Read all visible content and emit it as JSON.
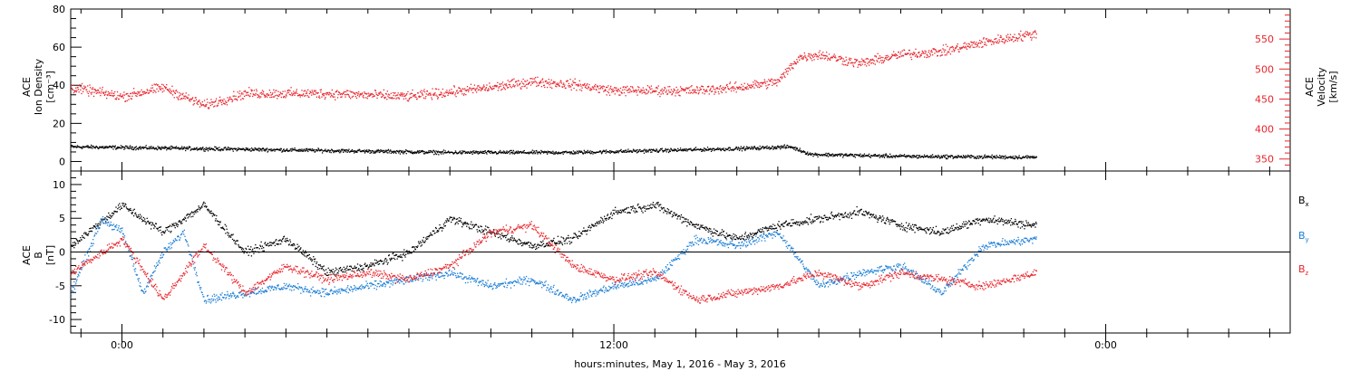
{
  "colors": {
    "black": "#000000",
    "red": "#e8242b",
    "blue": "#1c7ed6"
  },
  "xlabel": "hours:minutes, May  1, 2016 - May  3, 2016",
  "x_ticks": [
    "0:00",
    "12:00",
    "0:00"
  ],
  "x_range_hours": [
    -1.25,
    28.5
  ],
  "data_end_hour": 22.3,
  "chart_data": [
    {
      "type": "scatter",
      "panel": "top",
      "ylabel_lines": [
        "ACE",
        "Ion Density",
        "[cm⁻³]"
      ],
      "ylabel_right_lines": [
        "ACE",
        "Velocity",
        "[km/s]"
      ],
      "ylim_left": [
        -5,
        80
      ],
      "yticks_left": [
        "0",
        "20",
        "40",
        "60",
        "80"
      ],
      "ylim_right": [
        330,
        600
      ],
      "yticks_right": [
        "350",
        "400",
        "450",
        "500",
        "550"
      ],
      "series": [
        {
          "axis": "left",
          "color": "black",
          "points": [
            [
              -1.25,
              8
            ],
            [
              2,
              7
            ],
            [
              5,
              6
            ],
            [
              8,
              5
            ],
            [
              11,
              5
            ],
            [
              13,
              6
            ],
            [
              15,
              7
            ],
            [
              16.3,
              8
            ],
            [
              16.8,
              4
            ],
            [
              19,
              3
            ],
            [
              22.3,
              2.5
            ]
          ]
        },
        {
          "axis": "right",
          "color": "red",
          "points": [
            [
              -1.25,
              470
            ],
            [
              0,
              455
            ],
            [
              1,
              470
            ],
            [
              2,
              440
            ],
            [
              3,
              460
            ],
            [
              5,
              460
            ],
            [
              7,
              455
            ],
            [
              9,
              470
            ],
            [
              10,
              480
            ],
            [
              11,
              475
            ],
            [
              12,
              465
            ],
            [
              14,
              465
            ],
            [
              15,
              470
            ],
            [
              16,
              480
            ],
            [
              16.5,
              520
            ],
            [
              17,
              525
            ],
            [
              18,
              510
            ],
            [
              19,
              525
            ],
            [
              20,
              530
            ],
            [
              21,
              545
            ],
            [
              22.3,
              560
            ]
          ]
        }
      ]
    },
    {
      "type": "scatter",
      "panel": "bottom",
      "ylabel_lines": [
        "ACE",
        "B",
        "[nT]"
      ],
      "ylim": [
        -12,
        12
      ],
      "yticks": [
        "10",
        "5",
        "0",
        "-5",
        "-10"
      ],
      "series": [
        {
          "name": "B",
          "sub": "x",
          "color": "black",
          "points": [
            [
              -1.25,
              1
            ],
            [
              0,
              7
            ],
            [
              1,
              3
            ],
            [
              2,
              7
            ],
            [
              3,
              0
            ],
            [
              4,
              2
            ],
            [
              5,
              -3
            ],
            [
              6,
              -2
            ],
            [
              7,
              0
            ],
            [
              8,
              5
            ],
            [
              9,
              3
            ],
            [
              10,
              1
            ],
            [
              11,
              2
            ],
            [
              12,
              6
            ],
            [
              13,
              7
            ],
            [
              14,
              4
            ],
            [
              15,
              2
            ],
            [
              16,
              4
            ],
            [
              17,
              5
            ],
            [
              18,
              6
            ],
            [
              19,
              4
            ],
            [
              20,
              3
            ],
            [
              21,
              5
            ],
            [
              22.3,
              4
            ]
          ]
        },
        {
          "name": "B",
          "sub": "y",
          "color": "blue",
          "points": [
            [
              -1.25,
              -6
            ],
            [
              -0.5,
              5
            ],
            [
              0,
              3
            ],
            [
              0.5,
              -6
            ],
            [
              1,
              0
            ],
            [
              1.5,
              3
            ],
            [
              2,
              -7
            ],
            [
              3,
              -6
            ],
            [
              4,
              -5
            ],
            [
              5,
              -6
            ],
            [
              6,
              -5
            ],
            [
              7,
              -4
            ],
            [
              8,
              -3
            ],
            [
              9,
              -5
            ],
            [
              10,
              -4
            ],
            [
              11,
              -7
            ],
            [
              12,
              -5
            ],
            [
              13,
              -4
            ],
            [
              14,
              2
            ],
            [
              15,
              1
            ],
            [
              16,
              3
            ],
            [
              17,
              -5
            ],
            [
              18,
              -3
            ],
            [
              19,
              -2
            ],
            [
              20,
              -6
            ],
            [
              21,
              1
            ],
            [
              22.3,
              2
            ]
          ]
        },
        {
          "name": "B",
          "sub": "z",
          "color": "red",
          "points": [
            [
              -1.25,
              -3
            ],
            [
              0,
              2
            ],
            [
              1,
              -7
            ],
            [
              2,
              1
            ],
            [
              3,
              -6
            ],
            [
              4,
              -2
            ],
            [
              5,
              -4
            ],
            [
              6,
              -3
            ],
            [
              7,
              -4
            ],
            [
              8,
              -2
            ],
            [
              9,
              3
            ],
            [
              10,
              4
            ],
            [
              11,
              -2
            ],
            [
              12,
              -4
            ],
            [
              13,
              -3
            ],
            [
              14,
              -7
            ],
            [
              15,
              -6
            ],
            [
              16,
              -5
            ],
            [
              17,
              -3
            ],
            [
              18,
              -5
            ],
            [
              19,
              -3
            ],
            [
              20,
              -4
            ],
            [
              21,
              -5
            ],
            [
              22.3,
              -3
            ]
          ]
        }
      ]
    }
  ]
}
